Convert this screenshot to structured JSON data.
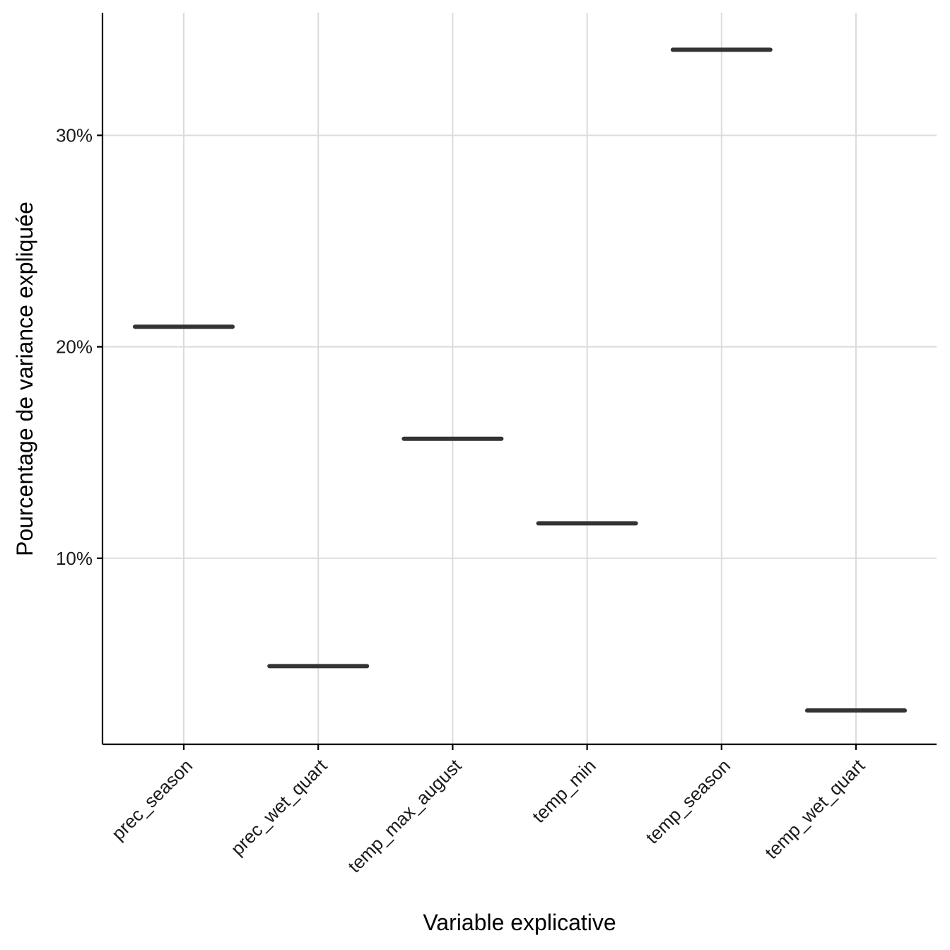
{
  "chart_data": {
    "type": "boxplot",
    "title": "",
    "xlabel": "Variable explicative",
    "ylabel": "Pourcentage de variance expliquée",
    "categories": [
      "prec_season",
      "prec_wet_quart",
      "temp_max_august",
      "temp_min",
      "temp_season",
      "temp_wet_quart"
    ],
    "values": [
      20.95,
      4.9,
      15.65,
      11.65,
      34.05,
      2.8
    ],
    "y_ticks": [
      10,
      20,
      30
    ],
    "y_tick_labels": [
      "10%",
      "20%",
      "30%"
    ],
    "ylim": [
      1.2,
      35.8
    ],
    "grid": true,
    "legend": "none",
    "mark_color": "#333333"
  }
}
